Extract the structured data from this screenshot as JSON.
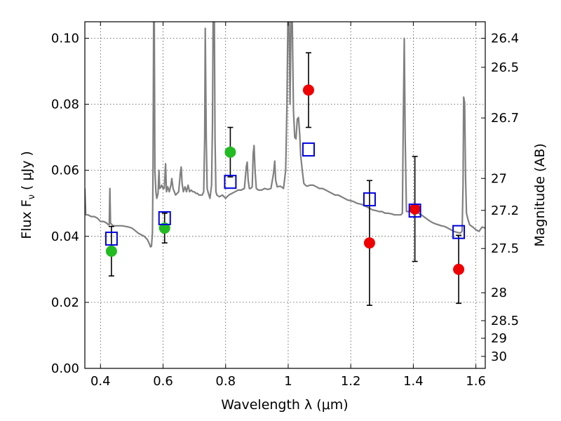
{
  "chart_data": {
    "type": "scatter",
    "xlabel": "Wavelength  λ (μm)",
    "ylabel": "Flux  F",
    "ylabel_sub": "ν",
    "ylabel_unit": "( μJy )",
    "y2label": "Magnitude (AB)",
    "xlim": [
      0.35,
      1.63
    ],
    "ylim": [
      0.0,
      0.105
    ],
    "grid": true,
    "x_ticks": [
      {
        "value": 0.4,
        "label": "0.4"
      },
      {
        "value": 0.6,
        "label": "0.6"
      },
      {
        "value": 0.8,
        "label": "0.8"
      },
      {
        "value": 1.0,
        "label": "1"
      },
      {
        "value": 1.2,
        "label": "1.2"
      },
      {
        "value": 1.4,
        "label": "1.4"
      },
      {
        "value": 1.6,
        "label": "1.6"
      }
    ],
    "y_ticks": [
      {
        "value": 0.0,
        "label": "0.00"
      },
      {
        "value": 0.02,
        "label": "0.02"
      },
      {
        "value": 0.04,
        "label": "0.04"
      },
      {
        "value": 0.06,
        "label": "0.06"
      },
      {
        "value": 0.08,
        "label": "0.08"
      },
      {
        "value": 0.1,
        "label": "0.10"
      }
    ],
    "y2_ticks": [
      {
        "value": 26.4,
        "label": "26.4"
      },
      {
        "value": 26.5,
        "label": "26.5"
      },
      {
        "value": 26.7,
        "label": "26.7"
      },
      {
        "value": 27.0,
        "label": "27"
      },
      {
        "value": 27.2,
        "label": "27.2"
      },
      {
        "value": 27.5,
        "label": "27.5"
      },
      {
        "value": 28.0,
        "label": "28"
      },
      {
        "value": 28.5,
        "label": "28.5"
      },
      {
        "value": 29.0,
        "label": "29"
      },
      {
        "value": 30.0,
        "label": "30"
      }
    ],
    "series": [
      {
        "kind": "spectrum",
        "color": "#808080",
        "points": [
          [
            0.35,
            0.0545
          ],
          [
            0.353,
            0.0465
          ],
          [
            0.36,
            0.0465
          ],
          [
            0.37,
            0.046
          ],
          [
            0.38,
            0.046
          ],
          [
            0.39,
            0.0455
          ],
          [
            0.4,
            0.0445
          ],
          [
            0.41,
            0.0445
          ],
          [
            0.42,
            0.044
          ],
          [
            0.425,
            0.0435
          ],
          [
            0.428,
            0.0435
          ],
          [
            0.43,
            0.0545
          ],
          [
            0.432,
            0.044
          ],
          [
            0.44,
            0.0432
          ],
          [
            0.45,
            0.0432
          ],
          [
            0.46,
            0.0432
          ],
          [
            0.47,
            0.0432
          ],
          [
            0.48,
            0.043
          ],
          [
            0.49,
            0.0428
          ],
          [
            0.5,
            0.0425
          ],
          [
            0.51,
            0.0418
          ],
          [
            0.52,
            0.041
          ],
          [
            0.53,
            0.0405
          ],
          [
            0.54,
            0.04
          ],
          [
            0.55,
            0.039
          ],
          [
            0.555,
            0.038
          ],
          [
            0.56,
            0.0368
          ],
          [
            0.563,
            0.037
          ],
          [
            0.566,
            0.041
          ],
          [
            0.568,
            0.06
          ],
          [
            0.57,
            0.105
          ],
          [
            0.572,
            0.105
          ],
          [
            0.574,
            0.06
          ],
          [
            0.577,
            0.0535
          ],
          [
            0.58,
            0.0515
          ],
          [
            0.584,
            0.053
          ],
          [
            0.587,
            0.06
          ],
          [
            0.589,
            0.0545
          ],
          [
            0.592,
            0.0548
          ],
          [
            0.596,
            0.0555
          ],
          [
            0.6,
            0.0545
          ],
          [
            0.604,
            0.0545
          ],
          [
            0.608,
            0.062
          ],
          [
            0.611,
            0.0535
          ],
          [
            0.615,
            0.055
          ],
          [
            0.62,
            0.0535
          ],
          [
            0.625,
            0.0555
          ],
          [
            0.628,
            0.0575
          ],
          [
            0.632,
            0.0545
          ],
          [
            0.636,
            0.0535
          ],
          [
            0.64,
            0.0525
          ],
          [
            0.645,
            0.053
          ],
          [
            0.65,
            0.0535
          ],
          [
            0.655,
            0.059
          ],
          [
            0.658,
            0.061
          ],
          [
            0.661,
            0.056
          ],
          [
            0.665,
            0.0535
          ],
          [
            0.67,
            0.055
          ],
          [
            0.675,
            0.0535
          ],
          [
            0.68,
            0.0555
          ],
          [
            0.685,
            0.0535
          ],
          [
            0.69,
            0.054
          ],
          [
            0.695,
            0.0535
          ],
          [
            0.7,
            0.0535
          ],
          [
            0.705,
            0.053
          ],
          [
            0.71,
            0.053
          ],
          [
            0.715,
            0.0525
          ],
          [
            0.72,
            0.0525
          ],
          [
            0.725,
            0.0525
          ],
          [
            0.73,
            0.0535
          ],
          [
            0.733,
            0.07
          ],
          [
            0.735,
            0.103
          ],
          [
            0.738,
            0.07
          ],
          [
            0.741,
            0.0545
          ],
          [
            0.745,
            0.053
          ],
          [
            0.75,
            0.0515
          ],
          [
            0.755,
            0.0555
          ],
          [
            0.758,
            0.074
          ],
          [
            0.76,
            0.105
          ],
          [
            0.762,
            0.0985
          ],
          [
            0.764,
            0.105
          ],
          [
            0.766,
            0.07
          ],
          [
            0.769,
            0.0535
          ],
          [
            0.772,
            0.0525
          ],
          [
            0.78,
            0.052
          ],
          [
            0.79,
            0.0525
          ],
          [
            0.8,
            0.0515
          ],
          [
            0.81,
            0.0525
          ],
          [
            0.82,
            0.053
          ],
          [
            0.83,
            0.0535
          ],
          [
            0.84,
            0.054
          ],
          [
            0.85,
            0.054
          ],
          [
            0.86,
            0.0545
          ],
          [
            0.866,
            0.061
          ],
          [
            0.869,
            0.0625
          ],
          [
            0.872,
            0.057
          ],
          [
            0.876,
            0.0545
          ],
          [
            0.88,
            0.0545
          ],
          [
            0.885,
            0.055
          ],
          [
            0.888,
            0.065
          ],
          [
            0.891,
            0.0675
          ],
          [
            0.894,
            0.06
          ],
          [
            0.898,
            0.0545
          ],
          [
            0.905,
            0.054
          ],
          [
            0.915,
            0.054
          ],
          [
            0.925,
            0.0545
          ],
          [
            0.935,
            0.0542
          ],
          [
            0.945,
            0.0545
          ],
          [
            0.953,
            0.059
          ],
          [
            0.957,
            0.0628
          ],
          [
            0.96,
            0.057
          ],
          [
            0.965,
            0.055
          ],
          [
            0.975,
            0.0552
          ],
          [
            0.985,
            0.0545
          ],
          [
            0.992,
            0.06
          ],
          [
            0.996,
            0.08
          ],
          [
            0.999,
            0.105
          ],
          [
            1.003,
            0.105
          ],
          [
            1.006,
            0.08
          ],
          [
            1.009,
            0.105
          ],
          [
            1.013,
            0.105
          ],
          [
            1.017,
            0.078
          ],
          [
            1.021,
            0.07
          ],
          [
            1.025,
            0.0695
          ],
          [
            1.029,
            0.0755
          ],
          [
            1.033,
            0.076
          ],
          [
            1.037,
            0.0705
          ],
          [
            1.04,
            0.0645
          ],
          [
            1.045,
            0.06
          ],
          [
            1.05,
            0.056
          ],
          [
            1.055,
            0.0555
          ],
          [
            1.06,
            0.0552
          ],
          [
            1.07,
            0.0555
          ],
          [
            1.08,
            0.0555
          ],
          [
            1.09,
            0.055
          ],
          [
            1.1,
            0.0545
          ],
          [
            1.11,
            0.0545
          ],
          [
            1.12,
            0.054
          ],
          [
            1.13,
            0.0535
          ],
          [
            1.14,
            0.053
          ],
          [
            1.15,
            0.0525
          ],
          [
            1.16,
            0.0525
          ],
          [
            1.17,
            0.052
          ],
          [
            1.18,
            0.0515
          ],
          [
            1.19,
            0.051
          ],
          [
            1.2,
            0.0508
          ],
          [
            1.21,
            0.0505
          ],
          [
            1.22,
            0.05
          ],
          [
            1.23,
            0.0498
          ],
          [
            1.24,
            0.0495
          ],
          [
            1.25,
            0.049
          ],
          [
            1.26,
            0.0485
          ],
          [
            1.27,
            0.048
          ],
          [
            1.28,
            0.0478
          ],
          [
            1.29,
            0.0475
          ],
          [
            1.3,
            0.0475
          ],
          [
            1.31,
            0.047
          ],
          [
            1.32,
            0.047
          ],
          [
            1.33,
            0.0468
          ],
          [
            1.34,
            0.0465
          ],
          [
            1.35,
            0.0465
          ],
          [
            1.36,
            0.0465
          ],
          [
            1.365,
            0.047
          ],
          [
            1.368,
            0.075
          ],
          [
            1.371,
            0.1
          ],
          [
            1.374,
            0.07
          ],
          [
            1.378,
            0.0475
          ],
          [
            1.385,
            0.0475
          ],
          [
            1.39,
            0.048
          ],
          [
            1.4,
            0.0478
          ],
          [
            1.41,
            0.0475
          ],
          [
            1.42,
            0.0468
          ],
          [
            1.43,
            0.0462
          ],
          [
            1.44,
            0.0455
          ],
          [
            1.45,
            0.0448
          ],
          [
            1.46,
            0.0442
          ],
          [
            1.47,
            0.0438
          ],
          [
            1.48,
            0.0435
          ],
          [
            1.49,
            0.0432
          ],
          [
            1.5,
            0.043
          ],
          [
            1.51,
            0.0425
          ],
          [
            1.52,
            0.042
          ],
          [
            1.53,
            0.0415
          ],
          [
            1.54,
            0.0412
          ],
          [
            1.55,
            0.041
          ],
          [
            1.556,
            0.0415
          ],
          [
            1.559,
            0.0555
          ],
          [
            1.561,
            0.0822
          ],
          [
            1.564,
            0.0805
          ],
          [
            1.567,
            0.058
          ],
          [
            1.57,
            0.047
          ],
          [
            1.575,
            0.045
          ],
          [
            1.58,
            0.0435
          ],
          [
            1.59,
            0.0428
          ],
          [
            1.6,
            0.042
          ],
          [
            1.61,
            0.0415
          ],
          [
            1.615,
            0.0422
          ],
          [
            1.62,
            0.0428
          ],
          [
            1.63,
            0.0425
          ]
        ]
      },
      {
        "kind": "points",
        "marker": "filled-circle",
        "color": "#22bb22",
        "x": [
          0.435,
          0.605,
          0.815
        ],
        "y": [
          0.0355,
          0.0425,
          0.0655
        ],
        "yerr_low": [
          0.0075,
          0.0045,
          0.0075
        ],
        "yerr_high": [
          0.0075,
          0.0045,
          0.0075
        ]
      },
      {
        "kind": "points",
        "marker": "filled-circle",
        "color": "#ee0000",
        "x": [
          1.065,
          1.26,
          1.405,
          1.545
        ],
        "y": [
          0.0843,
          0.038,
          0.0483,
          0.03
        ],
        "yerr_low": [
          0.0113,
          0.0189,
          0.0159,
          0.0103
        ],
        "yerr_high": [
          0.0113,
          0.0189,
          0.0159,
          0.0103
        ]
      },
      {
        "kind": "points",
        "marker": "open-square",
        "color": "#0000dd",
        "x": [
          0.435,
          0.605,
          0.815,
          1.065,
          1.26,
          1.405,
          1.545
        ],
        "y": [
          0.0393,
          0.0455,
          0.0565,
          0.0663,
          0.0512,
          0.0478,
          0.0413
        ]
      }
    ]
  }
}
